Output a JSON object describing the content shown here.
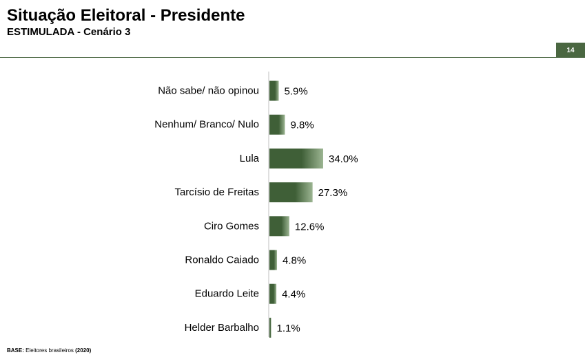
{
  "header": {
    "title": "Situação Eleitoral - Presidente",
    "subtitle": "ESTIMULADA - Cenário 3",
    "page_number": "14"
  },
  "footer": {
    "base_label": "BASE:",
    "base_text": " Eleitores brasileiros ",
    "base_year": "(2020)"
  },
  "colors": {
    "bar_dark": "#3f5f37",
    "bar_light": "#9cb592",
    "accent": "#4a6741"
  },
  "chart_data": {
    "type": "bar",
    "orientation": "horizontal",
    "categories": [
      "Não sabe/ não opinou",
      "Nenhum/ Branco/ Nulo",
      "Lula",
      "Tarcísio de Freitas",
      "Ciro Gomes",
      "Ronaldo Caiado",
      "Eduardo Leite",
      "Helder Barbalho"
    ],
    "values": [
      5.9,
      9.8,
      34.0,
      27.3,
      12.6,
      4.8,
      4.4,
      1.1
    ],
    "value_labels": [
      "5.9%",
      "9.8%",
      "34.0%",
      "27.3%",
      "12.6%",
      "4.8%",
      "4.4%",
      "1.1%"
    ],
    "unit": "%",
    "title": "",
    "xlabel": "",
    "ylabel": "",
    "xlim": [
      0,
      34
    ],
    "grid": false,
    "legend": "none"
  }
}
